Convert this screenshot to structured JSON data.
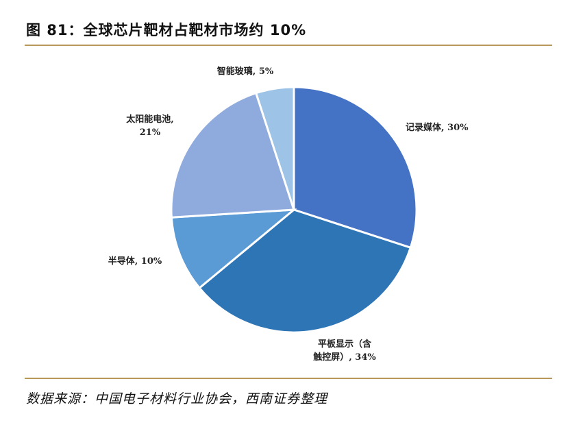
{
  "title": "图 81：全球芯片靶材占靶材市场约 10%",
  "source": "数据来源：中国电子材料行业协会，西南证券整理",
  "chart_data": {
    "type": "pie",
    "title": "",
    "start_angle_deg": 0,
    "direction": "clockwise",
    "slices": [
      {
        "name": "记录媒体",
        "value": 30,
        "label_lines": [
          "记录媒体, 30%"
        ],
        "color": "#4472c4"
      },
      {
        "name": "平板显示（含触控屏）",
        "value": 34,
        "label_lines": [
          "平板显示（含",
          "触控屏）, 34%"
        ],
        "color": "#2e75b6"
      },
      {
        "name": "半导体",
        "value": 10,
        "label_lines": [
          "半导体, 10%"
        ],
        "color": "#5b9bd5"
      },
      {
        "name": "太阳能电池",
        "value": 21,
        "label_lines": [
          "太阳能电池,",
          "21%"
        ],
        "color": "#8faadc"
      },
      {
        "name": "智能玻璃",
        "value": 5,
        "label_lines": [
          "智能玻璃, 5%"
        ],
        "color": "#9dc3e6"
      }
    ]
  }
}
